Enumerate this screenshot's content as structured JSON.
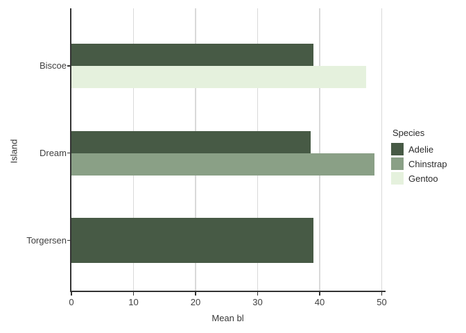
{
  "figure": {
    "background": "#ffffff"
  },
  "y_axis": {
    "title": "Island",
    "tick_labels": [
      "Biscoe",
      "Dream",
      "Torgersen"
    ]
  },
  "x_axis": {
    "title": "Mean bl",
    "tick_labels": [
      "0",
      "10",
      "20",
      "30",
      "40",
      "50"
    ]
  },
  "legend": {
    "title": "Species",
    "entries": [
      {
        "label": "Adelie",
        "color": "#475A45"
      },
      {
        "label": "Chinstrap",
        "color": "#8AA086"
      },
      {
        "label": "Gentoo",
        "color": "#E5F1DD"
      }
    ]
  },
  "colors": {
    "gridline": "#d9d9d9",
    "spine": "#333333",
    "text": "#3f3f3f"
  },
  "chart_data": {
    "type": "bar",
    "orientation": "horizontal",
    "title": "",
    "xlabel": "Mean bl",
    "ylabel": "Island",
    "categories": [
      "Biscoe",
      "Dream",
      "Torgersen"
    ],
    "series": [
      {
        "name": "Adelie",
        "color": "#475A45",
        "values": [
          39.0,
          38.5,
          39.0
        ]
      },
      {
        "name": "Chinstrap",
        "color": "#8AA086",
        "values": [
          null,
          48.8,
          null
        ]
      },
      {
        "name": "Gentoo",
        "color": "#E5F1DD",
        "values": [
          47.5,
          null,
          null
        ]
      }
    ],
    "x_ticks": [
      0,
      10,
      20,
      30,
      40,
      50
    ],
    "xlim": [
      0,
      50.6
    ],
    "grid": "vertical-major-only",
    "legend_title": "Species",
    "legend_position": "right"
  }
}
